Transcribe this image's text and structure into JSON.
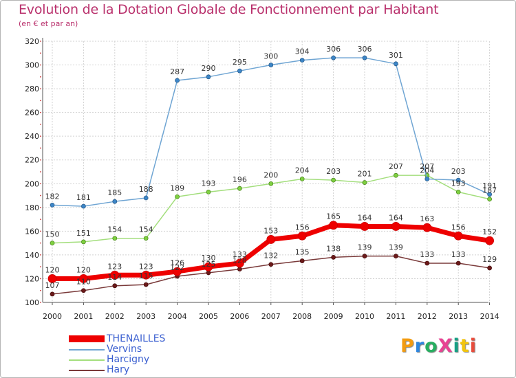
{
  "title": "Evolution de la Dotation Globale de Fonctionnement par Habitant",
  "subtitle": "(en € et par an)",
  "logo": {
    "text": "ProXiti",
    "colors": [
      "#f39c12",
      "#2e86de",
      "#27ae60",
      "#e84393",
      "#16a085",
      "#f1c40f",
      "#e74c3c"
    ]
  },
  "chart_data": {
    "type": "line",
    "title": "Evolution de la Dotation Globale de Fonctionnement par Habitant",
    "subtitle": "(en € et par an)",
    "xlabel": "",
    "ylabel": "",
    "x": [
      "2000",
      "2001",
      "2002",
      "2003",
      "2004",
      "2005",
      "2006",
      "2007",
      "2008",
      "2009",
      "2010",
      "2011",
      "2012",
      "2013",
      "2014"
    ],
    "ylim": [
      100,
      320
    ],
    "yticks": [
      100,
      120,
      140,
      160,
      180,
      200,
      220,
      240,
      260,
      280,
      300,
      320
    ],
    "grid": true,
    "legend_position": "bottom-left",
    "series": [
      {
        "name": "THENAILLES",
        "color": "#ee0000",
        "values": [
          120,
          120,
          123,
          123,
          126,
          130,
          133,
          153,
          156,
          165,
          164,
          164,
          163,
          156,
          152
        ],
        "labels": [
          "120",
          "120",
          "123",
          "123",
          "126",
          "130",
          "133",
          "153",
          "156",
          "165",
          "164",
          "164",
          "163",
          "156",
          "152"
        ]
      },
      {
        "name": "Vervins",
        "color": "#6fa5d3",
        "values": [
          182,
          181,
          185,
          188,
          287,
          290,
          295,
          300,
          304,
          306,
          306,
          301,
          204,
          203,
          191
        ],
        "labels": [
          "182",
          "181",
          "185",
          "188",
          "287",
          "290",
          "295",
          "300",
          "304",
          "306",
          "306",
          "301",
          "204",
          "203",
          "191"
        ]
      },
      {
        "name": "Harcigny",
        "color": "#a3de7c",
        "values": [
          150,
          151,
          154,
          154,
          189,
          193,
          196,
          200,
          204,
          203,
          201,
          207,
          207,
          193,
          187
        ],
        "labels": [
          "150",
          "151",
          "154",
          "154",
          "189",
          "193",
          "196",
          "200",
          "204",
          "203",
          "201",
          "207",
          "207",
          "193",
          "187"
        ]
      },
      {
        "name": "Hary",
        "color": "#7a3a3a",
        "values": [
          107,
          110,
          114,
          115,
          122,
          125,
          128,
          132,
          135,
          138,
          139,
          139,
          133,
          133,
          129
        ],
        "labels": [
          "107",
          "110",
          "114",
          "115",
          "122",
          "125",
          "128",
          "132",
          "135",
          "138",
          "139",
          "139",
          "133",
          "133",
          "129"
        ]
      }
    ]
  }
}
